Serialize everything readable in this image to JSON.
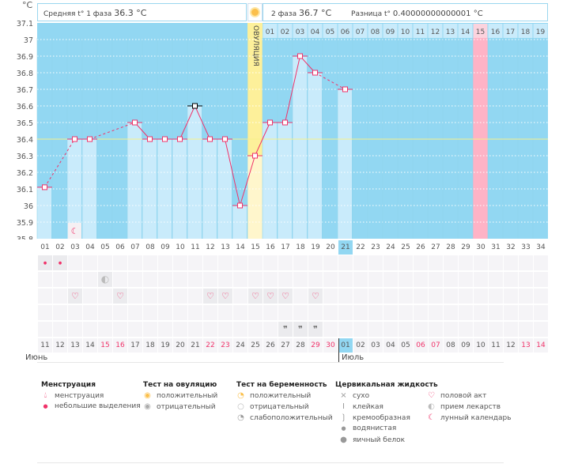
{
  "header": {
    "unit": "°C",
    "phase1_label": "Средняя t° 1 фаза",
    "phase1_value": "36.3 °C",
    "phase2_label": "2 фаза",
    "phase2_value": "36.7 °C",
    "diff_label": "Разница t°",
    "diff_value": "0.40000000000001 °C",
    "ovulation_label": "ОВУЛЯЦИЯ"
  },
  "chart_data": {
    "type": "line",
    "ylabel": "°C",
    "ylim": [
      35.8,
      37.1
    ],
    "yticks": [
      "37.1",
      "37",
      "36.9",
      "36.8",
      "36.7",
      "36.6",
      "36.5",
      "36.4",
      "36.3",
      "36.2",
      "36.1",
      "36",
      "35.9",
      "35.8"
    ],
    "grid": true,
    "cycle_days": [
      "01",
      "02",
      "03",
      "04",
      "05",
      "06",
      "07",
      "08",
      "09",
      "10",
      "11",
      "12",
      "13",
      "14",
      "15",
      "16",
      "17",
      "18",
      "19",
      "20",
      "21",
      "22",
      "23",
      "24",
      "25",
      "26",
      "27",
      "28",
      "29",
      "30",
      "31",
      "32",
      "33",
      "34"
    ],
    "luteal_days": [
      "01",
      "02",
      "03",
      "04",
      "05",
      "06",
      "07",
      "08",
      "09",
      "10",
      "11",
      "12",
      "13",
      "14",
      "15",
      "16",
      "17",
      "18",
      "19"
    ],
    "temperatures": [
      {
        "day": 1,
        "value": 36.11
      },
      {
        "day": 3,
        "value": 36.4
      },
      {
        "day": 4,
        "value": 36.4
      },
      {
        "day": 7,
        "value": 36.5
      },
      {
        "day": 8,
        "value": 36.4
      },
      {
        "day": 9,
        "value": 36.4
      },
      {
        "day": 10,
        "value": 36.4
      },
      {
        "day": 11,
        "value": 36.6
      },
      {
        "day": 12,
        "value": 36.4
      },
      {
        "day": 13,
        "value": 36.4
      },
      {
        "day": 14,
        "value": 36.0
      },
      {
        "day": 15,
        "value": 36.3
      },
      {
        "day": 16,
        "value": 36.5
      },
      {
        "day": 17,
        "value": 36.5
      },
      {
        "day": 18,
        "value": 36.9
      },
      {
        "day": 19,
        "value": 36.8
      },
      {
        "day": 21,
        "value": 36.7
      }
    ],
    "coverline": 36.4,
    "ovulation_day": 15,
    "expected_period_day": 30,
    "current_day": 21,
    "lunar_day": 3,
    "colors": {
      "background": "#92d7f2",
      "bar": "#c9ebfb",
      "line": "#f0336a",
      "ovulation": "#fdf09a",
      "period": "#feb3c6",
      "coverline": "#f7f08a"
    }
  },
  "rows": {
    "menstruation": [
      1,
      2
    ],
    "medication": [
      5
    ],
    "intercourse": [
      3,
      6,
      12,
      13,
      15,
      16,
      17,
      19
    ],
    "empty": [],
    "creamy": [
      17,
      18,
      19
    ]
  },
  "dates": [
    "11",
    "12",
    "13",
    "14",
    "15",
    "16",
    "17",
    "18",
    "19",
    "20",
    "21",
    "22",
    "23",
    "24",
    "25",
    "26",
    "27",
    "28",
    "29",
    "30",
    "01",
    "02",
    "03",
    "04",
    "05",
    "06",
    "07",
    "08",
    "09",
    "10",
    "11",
    "12",
    "13",
    "14"
  ],
  "weekend_indexes": [
    5,
    6,
    12,
    13,
    19,
    20,
    26,
    27,
    33,
    34
  ],
  "months": {
    "june": "Июнь",
    "july": "Июль"
  },
  "legend": {
    "menstruation": {
      "title": "Менструация",
      "items": [
        "менструация",
        "небольшие выделения"
      ]
    },
    "ovulation_test": {
      "title": "Тест на овуляцию",
      "items": [
        "положительный",
        "отрицательный"
      ]
    },
    "pregnancy_test": {
      "title": "Тест на беременность",
      "items": [
        "положительный",
        "отрицательный",
        "слабоположительный"
      ]
    },
    "cervical": {
      "title": "Цервикальная жидкость",
      "items": [
        "сухо",
        "клейкая",
        "кремообразная",
        "водянистая",
        "яичный белок"
      ]
    },
    "other": {
      "items": [
        "половой акт",
        "прием лекарств",
        "лунный календарь"
      ]
    }
  }
}
